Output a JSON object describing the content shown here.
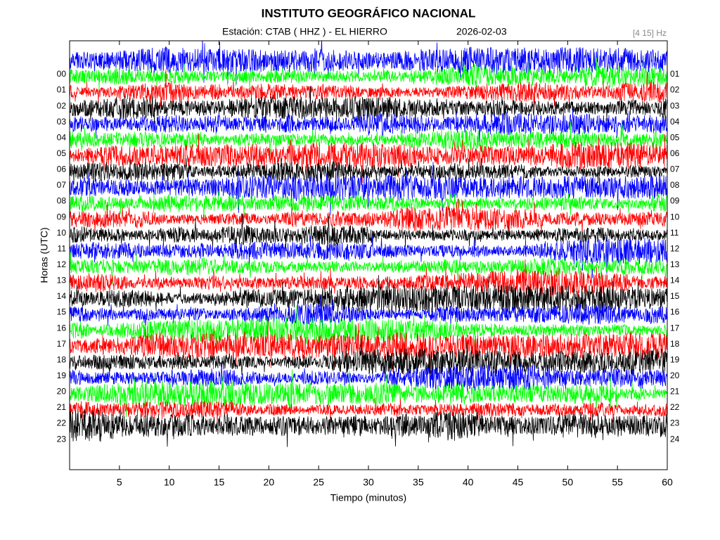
{
  "chart_data": {
    "type": "helicorder",
    "title": "INSTITUTO GEOGRÁFICO NACIONAL",
    "subtitle": "Estación:  CTAB ( HHZ ) - EL HIERRO",
    "date": "2026-02-03",
    "filter": "[4 15] Hz",
    "x_label": "Tiempo (minutos)",
    "y_label": "Horas (UTC)",
    "xlim": [
      0,
      60
    ],
    "xticks": [
      5,
      10,
      15,
      20,
      25,
      30,
      35,
      40,
      45,
      50,
      55,
      60
    ],
    "left_labels": [
      "00",
      "01",
      "02",
      "03",
      "04",
      "05",
      "06",
      "07",
      "08",
      "09",
      "10",
      "11",
      "12",
      "13",
      "14",
      "15",
      "16",
      "17",
      "18",
      "19",
      "20",
      "21",
      "22",
      "23"
    ],
    "right_labels": [
      "01",
      "02",
      "03",
      "04",
      "05",
      "06",
      "07",
      "08",
      "09",
      "10",
      "11",
      "12",
      "13",
      "14",
      "15",
      "16",
      "17",
      "18",
      "19",
      "20",
      "21",
      "22",
      "23",
      "24"
    ],
    "trace_colors": [
      "#0000ff",
      "#00ff00",
      "#ff0000",
      "#000000"
    ]
  }
}
